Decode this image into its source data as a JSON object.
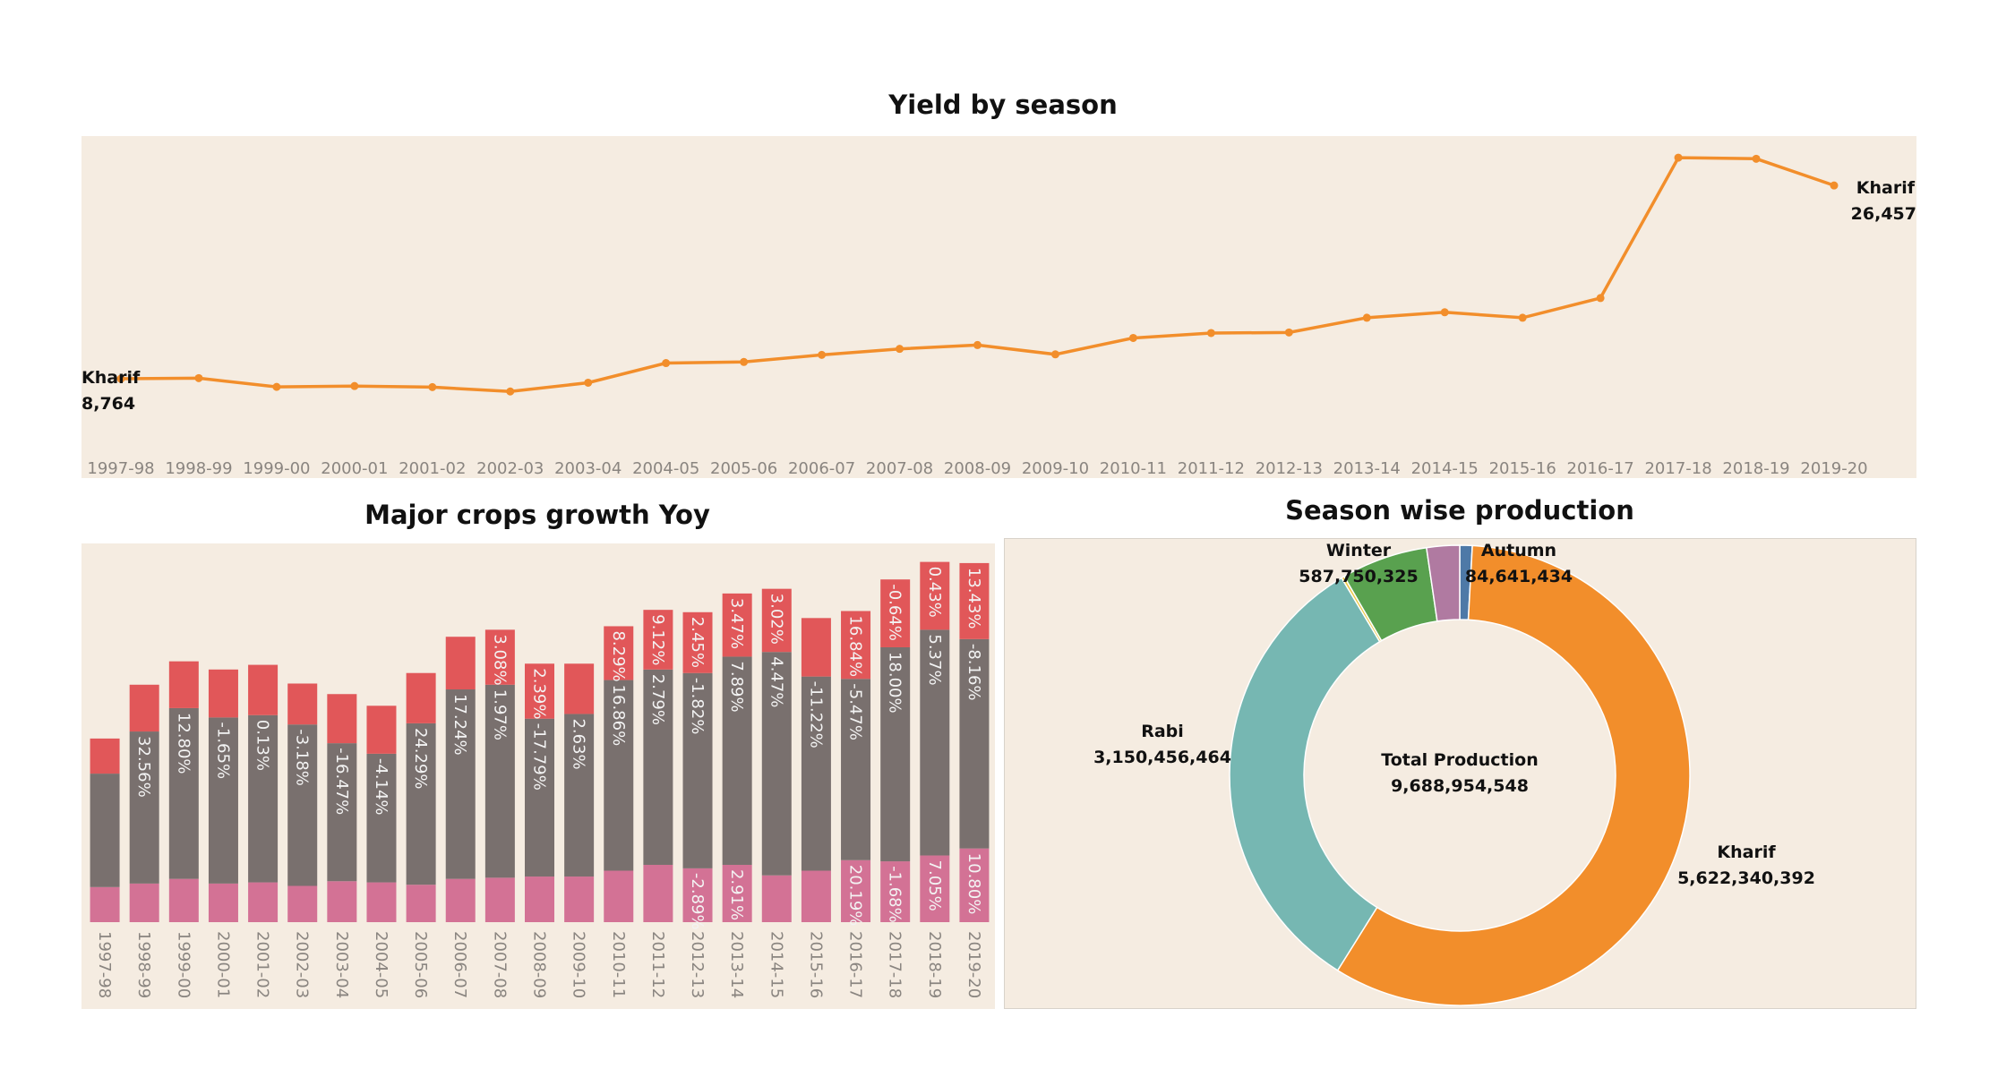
{
  "titles": {
    "yield": "Yield by season",
    "growth": "Major crops growth Yoy",
    "production": "Season wise production"
  },
  "colors": {
    "panel_bg": "#f5ece1",
    "line": "#f28e2b",
    "bar_top": "#e15759",
    "bar_mid": "#79706e",
    "bar_bottom": "#d37295",
    "kharif": "#f28e2b",
    "rabi": "#76b7b2",
    "winter": "#59a14f",
    "whole_year": "#b07aa1",
    "autumn": "#4e79a7",
    "summer": "#edc948"
  },
  "chart_data": [
    {
      "type": "line",
      "title": "Yield by season",
      "x": [
        "1997-98",
        "1998-99",
        "1999-00",
        "2000-01",
        "2001-02",
        "2002-03",
        "2003-04",
        "2004-05",
        "2005-06",
        "2006-07",
        "2007-08",
        "2008-09",
        "2009-10",
        "2010-11",
        "2011-12",
        "2012-13",
        "2013-14",
        "2014-15",
        "2015-16",
        "2016-17",
        "2017-18",
        "2018-19",
        "2019-20"
      ],
      "series": [
        {
          "name": "Kharif",
          "values": [
            8764,
            8820,
            8020,
            8100,
            8000,
            7600,
            8400,
            10200,
            10300,
            10950,
            11500,
            11850,
            11000,
            12500,
            12950,
            13000,
            14350,
            14850,
            14350,
            16150,
            29000,
            28900,
            26457
          ]
        }
      ],
      "ylim": [
        0,
        29500
      ],
      "annotations": [
        {
          "series": "Kharif",
          "label": "Kharif",
          "value_text": "8,764",
          "at": "start"
        },
        {
          "series": "Kharif",
          "label": "Kharif",
          "value_text": "26,457",
          "at": "end"
        }
      ],
      "grid": false
    },
    {
      "type": "bar",
      "stacked": true,
      "title": "Major crops growth Yoy",
      "categories": [
        "1997-98",
        "1998-99",
        "1999-00",
        "2000-01",
        "2001-02",
        "2002-03",
        "2003-04",
        "2004-05",
        "2005-06",
        "2006-07",
        "2007-08",
        "2008-09",
        "2009-10",
        "2010-11",
        "2011-12",
        "2012-13",
        "2013-14",
        "2014-15",
        "2015-16",
        "2016-17",
        "2017-18",
        "2018-19",
        "2019-20"
      ],
      "series": [
        {
          "values": [
            30,
            33,
            37,
            33,
            34,
            31,
            35,
            34,
            32,
            37,
            38,
            39,
            39,
            44,
            49,
            46,
            49,
            40,
            44,
            53,
            52,
            57,
            63
          ],
          "labels": [
            "",
            "",
            "",
            "",
            "",
            "",
            "",
            "",
            "",
            "",
            "",
            "",
            "",
            "",
            "",
            "-2.89%",
            "2.91%",
            "",
            "",
            "20.19%",
            "-1.68%",
            "7.05%",
            "10.80%"
          ]
        },
        {
          "values": [
            97,
            130,
            146,
            142,
            143,
            138,
            118,
            110,
            138,
            162,
            165,
            135,
            139,
            163,
            167,
            167,
            178,
            191,
            166,
            155,
            183,
            193,
            179
          ],
          "labels": [
            "",
            "32.56%",
            "12.80%",
            "-1.65%",
            "0.13%",
            "-3.18%",
            "-16.47%",
            "-4.14%",
            "24.29%",
            "17.24%",
            "1.97%",
            "-17.79%",
            "2.63%",
            "16.86%",
            "2.79%",
            "-1.82%",
            "7.89%",
            "4.47%",
            "-11.22%",
            "-5.47%",
            "18.00%",
            "5.37%",
            "-8.16%"
          ]
        },
        {
          "values": [
            30,
            40,
            40,
            41,
            43,
            35,
            42,
            41,
            43,
            45,
            47,
            47,
            43,
            46,
            51,
            52,
            54,
            54,
            50,
            58,
            58,
            58,
            65
          ],
          "labels": [
            "",
            "",
            "",
            "",
            "",
            "",
            "",
            "",
            "",
            "",
            "3.08%",
            "2.39%",
            "",
            "8.29%",
            "9.12%",
            "2.45%",
            "3.47%",
            "3.02%",
            "",
            "16.84%",
            "-0.64%",
            "0.43%",
            "13.43%"
          ]
        }
      ],
      "ylim": [
        0,
        310
      ]
    },
    {
      "type": "pie",
      "donut": true,
      "title": "Season wise production",
      "center_label": "Total Production",
      "center_value": "9,688,954,548",
      "slices": [
        {
          "name": "Autumn",
          "value": 84641434,
          "value_text": "84,641,434",
          "show_label": true
        },
        {
          "name": "Kharif",
          "value": 5622340392,
          "value_text": "5,622,340,392",
          "show_label": true
        },
        {
          "name": "Rabi",
          "value": 3150456464,
          "value_text": "3,150,456,464",
          "show_label": true
        },
        {
          "name": "Summer",
          "value": 20000000,
          "value_text": "",
          "show_label": false
        },
        {
          "name": "Winter",
          "value": 587750325,
          "value_text": "587,750,325",
          "show_label": true
        },
        {
          "name": "Whole Year",
          "value": 223765933,
          "value_text": "",
          "show_label": false
        }
      ]
    }
  ]
}
